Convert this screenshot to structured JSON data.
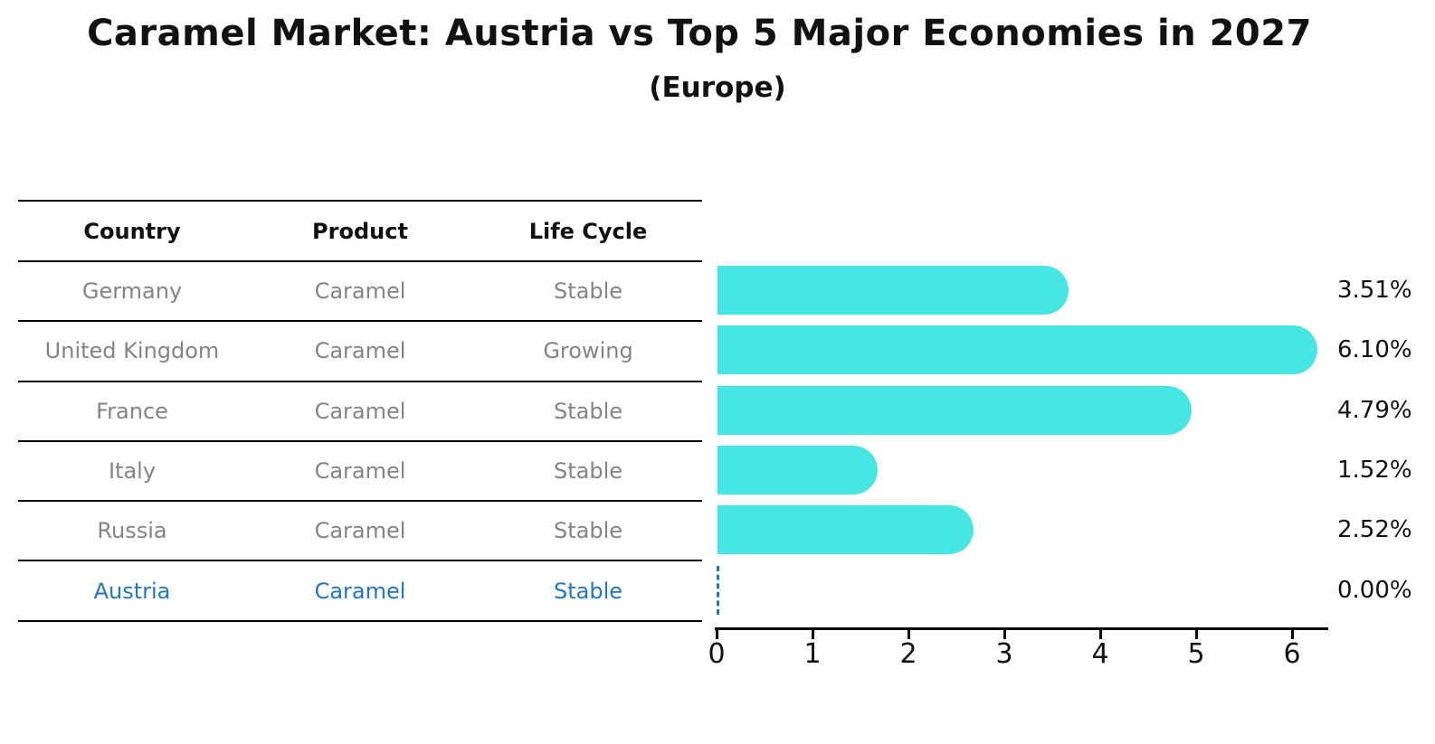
{
  "header": {
    "title": "Caramel Market: Austria vs Top 5 Major Economies in 2027",
    "subtitle": "(Europe)"
  },
  "table": {
    "columns": [
      "Country",
      "Product",
      "Life Cycle"
    ],
    "rows": [
      {
        "country": "Germany",
        "product": "Caramel",
        "life_cycle": "Stable"
      },
      {
        "country": "United Kingdom",
        "product": "Caramel",
        "life_cycle": "Growing"
      },
      {
        "country": "France",
        "product": "Caramel",
        "life_cycle": "Stable"
      },
      {
        "country": "Italy",
        "product": "Caramel",
        "life_cycle": "Stable"
      },
      {
        "country": "Russia",
        "product": "Caramel",
        "life_cycle": "Stable"
      },
      {
        "country": "Austria",
        "product": "Caramel",
        "life_cycle": "Stable"
      }
    ],
    "highlighted_row": "Austria"
  },
  "chart_data": {
    "type": "bar",
    "orientation": "horizontal",
    "title": "Caramel Market: Austria vs Top 5 Major Economies in 2027 (Europe)",
    "categories": [
      "Germany",
      "United Kingdom",
      "France",
      "Italy",
      "Russia",
      "Austria"
    ],
    "values": [
      3.51,
      6.1,
      4.79,
      1.52,
      2.52,
      0.0
    ],
    "value_labels": [
      "3.51%",
      "6.10%",
      "4.79%",
      "1.52%",
      "2.52%",
      "0.00%"
    ],
    "xticks": [
      "0",
      "1",
      "2",
      "3",
      "4",
      "5",
      "6"
    ],
    "xlim": [
      0,
      6.5
    ],
    "grid": false,
    "legend": "none",
    "bar_color": "#46E6E4",
    "highlight_color": "#2077C8",
    "zero_value_marker": "dashed-line"
  }
}
